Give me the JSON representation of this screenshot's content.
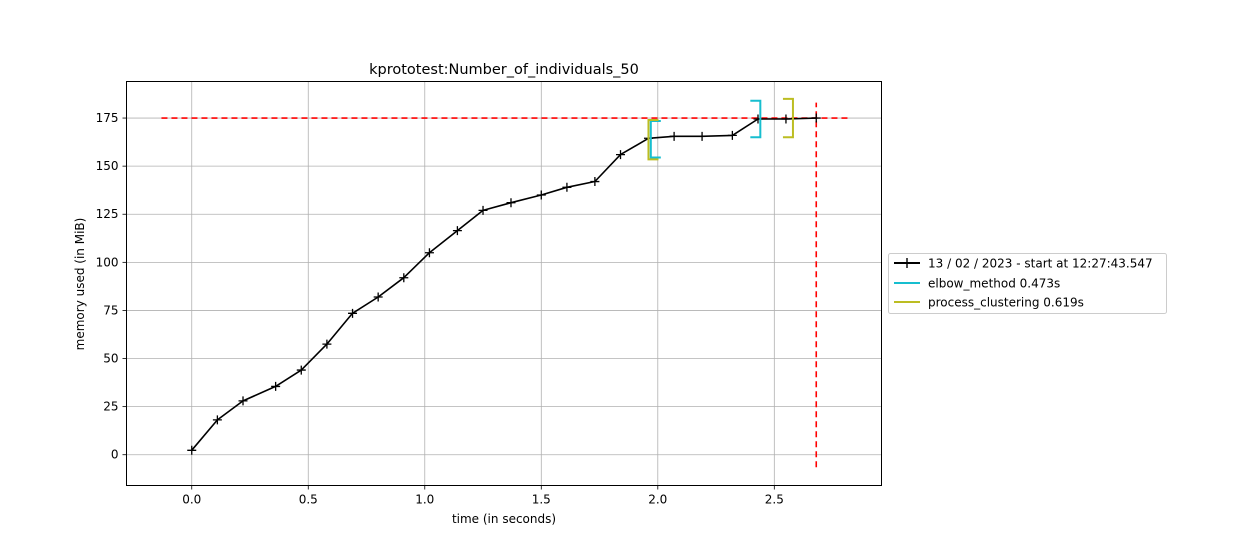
{
  "chart_data": {
    "type": "line",
    "title": "kprototest:Number_of_individuals_50",
    "xlabel": "time (in seconds)",
    "ylabel": "memory used (in MiB)",
    "xlim": [
      -0.28,
      2.96
    ],
    "ylim": [
      -16,
      194
    ],
    "xticks": [
      0.0,
      0.5,
      1.0,
      1.5,
      2.0,
      2.5
    ],
    "xtick_labels": [
      "0.0",
      "0.5",
      "1.0",
      "1.5",
      "2.0",
      "2.5"
    ],
    "yticks": [
      0,
      25,
      50,
      75,
      100,
      125,
      150,
      175
    ],
    "ytick_labels": [
      "0",
      "25",
      "50",
      "75",
      "100",
      "125",
      "150",
      "175"
    ],
    "grid": true,
    "legend_position": "outside-right",
    "series": [
      {
        "name": "13 / 02 / 2023 - start at 12:27:43.547",
        "color": "#000000",
        "marker": "+",
        "x": [
          0.0,
          0.11,
          0.22,
          0.36,
          0.47,
          0.58,
          0.69,
          0.8,
          0.91,
          1.02,
          1.14,
          1.25,
          1.37,
          1.5,
          1.61,
          1.73,
          1.84,
          1.96,
          2.07,
          2.19,
          2.32,
          2.43,
          2.55,
          2.68
        ],
        "y": [
          2.3,
          18.1,
          28.0,
          35.5,
          44.0,
          57.5,
          73.5,
          82.0,
          92.0,
          105.0,
          116.5,
          127.0,
          131.0,
          135.0,
          139.0,
          142.0,
          156.0,
          164.5,
          165.5,
          165.5,
          166.0,
          174.5,
          174.5,
          175.0
        ]
      }
    ],
    "brackets": [
      {
        "name": "elbow_method 0.473s",
        "color": "#17becf",
        "x_start": 1.97,
        "x_end": 2.44,
        "y_start": 154.5,
        "y_end": 165.0,
        "y_start_top": 173.5,
        "y_end_top": 184.0
      },
      {
        "name": "process_clustering 0.619s",
        "color": "#bcbd22",
        "x_start": 1.96,
        "x_end": 2.58,
        "y_start": 153.5,
        "y_end": 165.0,
        "y_start_top": 174.0,
        "y_end_top": 185.0
      }
    ],
    "reference_lines": {
      "color": "#ff0000",
      "max_memory": 175.0,
      "hline_x_range": [
        -0.13,
        2.82
      ],
      "end_time": 2.68,
      "vline_y_range": [
        -6.5,
        183.0
      ]
    }
  }
}
